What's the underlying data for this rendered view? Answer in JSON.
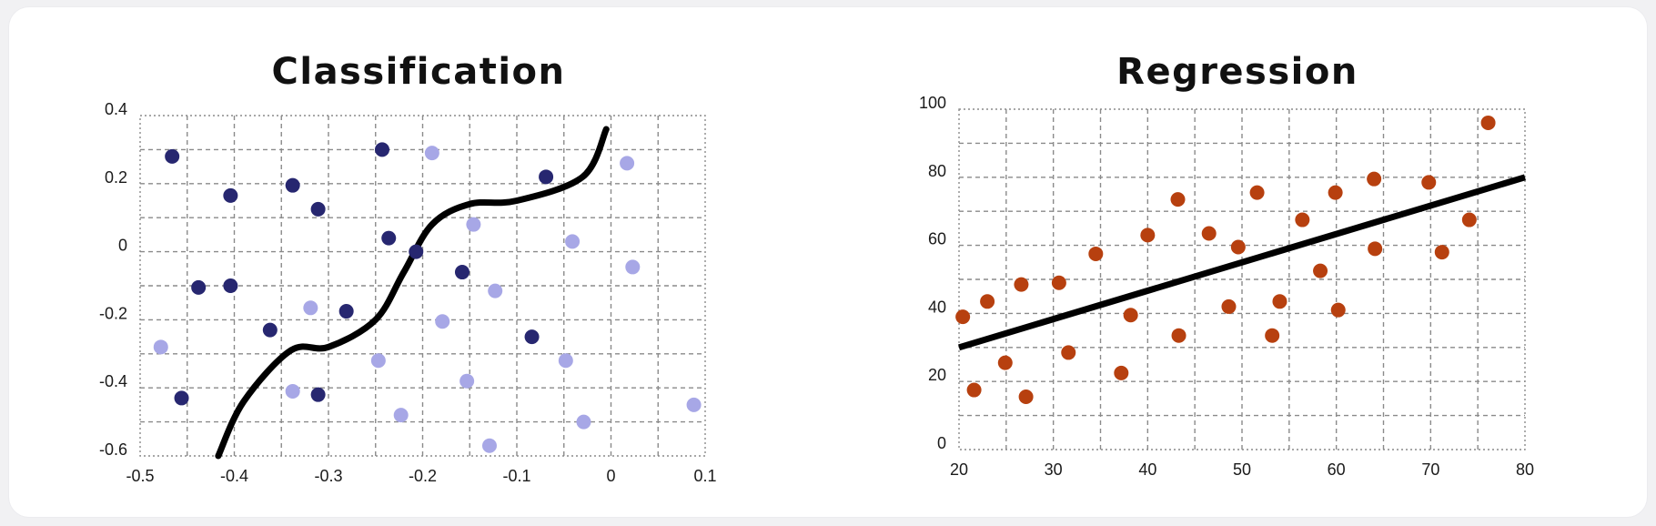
{
  "chart_data": [
    {
      "type": "scatter",
      "title": "Classification",
      "xlim": [
        -0.5,
        0.1
      ],
      "ylim": [
        -0.6,
        0.4
      ],
      "x_ticks": [
        -0.5,
        -0.4,
        -0.3,
        -0.2,
        -0.1,
        0,
        0.1
      ],
      "y_ticks": [
        0.4,
        0.2,
        0,
        -0.2,
        -0.4,
        -0.6
      ],
      "grid": true,
      "colors": {
        "class_a": "#272770",
        "class_b": "#a7a7e6",
        "boundary": "#000000"
      },
      "series": [
        {
          "color_key": "class_a",
          "points": [
            [
              -0.466,
              0.28
            ],
            [
              -0.404,
              0.165
            ],
            [
              -0.338,
              0.195
            ],
            [
              -0.311,
              0.125
            ],
            [
              -0.243,
              0.3
            ],
            [
              -0.236,
              0.04
            ],
            [
              -0.207,
              0.0
            ],
            [
              -0.158,
              -0.06
            ],
            [
              -0.069,
              0.22
            ],
            [
              -0.438,
              -0.105
            ],
            [
              -0.404,
              -0.1
            ],
            [
              -0.281,
              -0.175
            ],
            [
              -0.362,
              -0.23
            ],
            [
              -0.456,
              -0.43
            ],
            [
              -0.311,
              -0.42
            ],
            [
              -0.084,
              -0.25
            ]
          ]
        },
        {
          "color_key": "class_b",
          "points": [
            [
              -0.19,
              0.29
            ],
            [
              0.017,
              0.26
            ],
            [
              -0.146,
              0.08
            ],
            [
              -0.041,
              0.03
            ],
            [
              0.023,
              -0.045
            ],
            [
              -0.123,
              -0.115
            ],
            [
              -0.319,
              -0.165
            ],
            [
              -0.179,
              -0.205
            ],
            [
              -0.478,
              -0.28
            ],
            [
              -0.247,
              -0.32
            ],
            [
              -0.048,
              -0.32
            ],
            [
              -0.153,
              -0.38
            ],
            [
              -0.338,
              -0.41
            ],
            [
              -0.223,
              -0.48
            ],
            [
              -0.029,
              -0.5
            ],
            [
              0.088,
              -0.45
            ],
            [
              -0.129,
              -0.57
            ]
          ]
        }
      ],
      "boundary": [
        [
          -0.417,
          -0.6
        ],
        [
          -0.39,
          -0.44
        ],
        [
          -0.34,
          -0.29
        ],
        [
          -0.3,
          -0.28
        ],
        [
          -0.25,
          -0.2
        ],
        [
          -0.22,
          -0.06
        ],
        [
          -0.19,
          0.08
        ],
        [
          -0.15,
          0.14
        ],
        [
          -0.1,
          0.15
        ],
        [
          -0.03,
          0.22
        ],
        [
          -0.005,
          0.36
        ]
      ]
    },
    {
      "type": "scatter",
      "title": "Regression",
      "xlim": [
        20,
        80
      ],
      "ylim": [
        0,
        100
      ],
      "x_ticks": [
        20,
        30,
        40,
        50,
        60,
        70,
        80
      ],
      "y_ticks": [
        100,
        80,
        60,
        40,
        20,
        0
      ],
      "grid": true,
      "colors": {
        "points": "#b7400f",
        "trend": "#000000"
      },
      "points": [
        [
          20.4,
          39
        ],
        [
          21.6,
          17.5
        ],
        [
          23,
          43.5
        ],
        [
          24.9,
          25.5
        ],
        [
          26.6,
          48.5
        ],
        [
          27.1,
          15.5
        ],
        [
          30.6,
          49
        ],
        [
          31.6,
          28.5
        ],
        [
          34.5,
          57.5
        ],
        [
          37.2,
          22.5
        ],
        [
          38.2,
          39.5
        ],
        [
          40,
          63
        ],
        [
          43.2,
          73.5
        ],
        [
          43.3,
          33.5
        ],
        [
          46.5,
          63.5
        ],
        [
          48.6,
          42
        ],
        [
          49.6,
          59.5
        ],
        [
          51.6,
          75.5
        ],
        [
          53.2,
          33.5
        ],
        [
          54,
          43.5
        ],
        [
          56.4,
          67.5
        ],
        [
          58.3,
          52.5
        ],
        [
          59.9,
          75.5
        ],
        [
          60.2,
          41
        ],
        [
          64.1,
          59
        ],
        [
          64,
          79.5
        ],
        [
          69.8,
          78.5
        ],
        [
          71.2,
          58
        ],
        [
          74.1,
          67.5
        ],
        [
          76.1,
          96
        ]
      ],
      "trend_line": [
        [
          20,
          30
        ],
        [
          80,
          80
        ]
      ]
    }
  ]
}
